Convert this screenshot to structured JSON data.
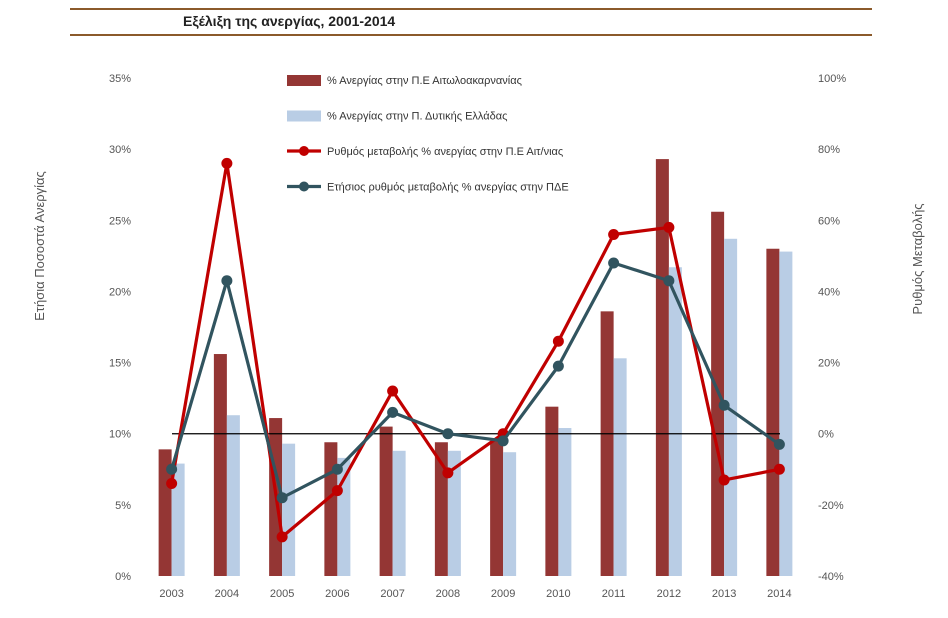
{
  "chart_data": {
    "type": "bar",
    "title": "Εξέλιξη της ανεργίας, 2001-2014",
    "categories": [
      "2003",
      "2004",
      "2005",
      "2006",
      "2007",
      "2008",
      "2009",
      "2010",
      "2011",
      "2012",
      "2013",
      "2014"
    ],
    "ylabel": "Ετήσια Ποσοστά Ανεργίας",
    "y2label": "Ρυθμός Μεταβολής",
    "ylim": [
      0,
      35
    ],
    "y2lim": [
      -40,
      100
    ],
    "yticks": [
      "0%",
      "5%",
      "10%",
      "15%",
      "20%",
      "25%",
      "30%",
      "35%"
    ],
    "y2ticks": [
      "-40%",
      "-20%",
      "0%",
      "20%",
      "40%",
      "60%",
      "80%",
      "100%"
    ],
    "grid": false,
    "legend_position": "top-center",
    "series": [
      {
        "name": "% Ανεργίας στην Π.Ε Αιτωλοακαρνανίας",
        "kind": "bar",
        "axis": "left",
        "color": "#943634",
        "values": [
          8.9,
          15.6,
          11.1,
          9.4,
          10.5,
          9.4,
          9.5,
          11.9,
          18.6,
          29.3,
          25.6,
          23.0
        ]
      },
      {
        "name": "% Ανεργίας στην Π. Δυτικής Ελλάδας",
        "kind": "bar",
        "axis": "left",
        "color": "#b9cde5",
        "values": [
          7.9,
          11.3,
          9.3,
          8.3,
          8.8,
          8.8,
          8.7,
          10.4,
          15.3,
          21.7,
          23.7,
          22.8
        ]
      },
      {
        "name": "Ρυθμός μεταβολής % ανεργίας στην Π.Ε Αιτ/νιας",
        "kind": "line",
        "axis": "right",
        "color": "#c00000",
        "values": [
          -14,
          76,
          -29,
          -16,
          12,
          -11,
          0,
          26,
          56,
          58,
          -13,
          -10
        ]
      },
      {
        "name": "Ετήσιος ρυθμός μεταβολής % ανεργίας στην ΠΔΕ",
        "kind": "line",
        "axis": "right",
        "color": "#31545f",
        "values": [
          -10,
          43,
          -18,
          -10,
          6,
          0,
          -2,
          19,
          48,
          43,
          8,
          -3
        ]
      }
    ]
  }
}
